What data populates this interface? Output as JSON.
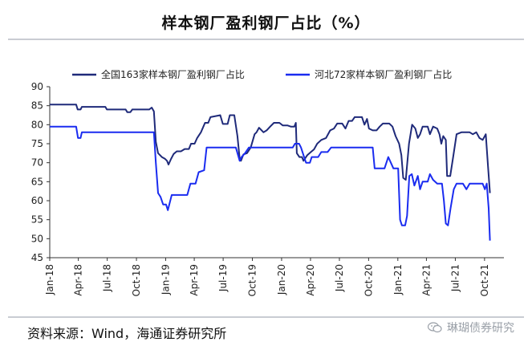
{
  "title": "样本钢厂盈利钢厂占比（%）",
  "source": "资料来源：Wind，海通证券研究所",
  "watermark": {
    "text": "琳瑚债券研究",
    "icon": "wechat-icon"
  },
  "chart_data": {
    "type": "line",
    "title": "样本钢厂盈利钢厂占比（%）",
    "xlabel": "",
    "ylabel": "",
    "ylim": [
      45,
      90
    ],
    "yticks": [
      45,
      50,
      55,
      60,
      65,
      70,
      75,
      80,
      85,
      90
    ],
    "xlim": [
      "2018-01-01",
      "2021-12-01"
    ],
    "xticks": [
      "Jan-18",
      "Apr-18",
      "Jul-18",
      "Oct-18",
      "Jan-19",
      "Apr-19",
      "Jul-19",
      "Oct-19",
      "Jan-20",
      "Apr-20",
      "Jul-20",
      "Oct-20",
      "Jan-21",
      "Apr-21",
      "Jul-21",
      "Oct-21"
    ],
    "xtick_dates": [
      "2018-01-01",
      "2018-04-01",
      "2018-07-01",
      "2018-10-01",
      "2019-01-01",
      "2019-04-01",
      "2019-07-01",
      "2019-10-01",
      "2020-01-01",
      "2020-04-01",
      "2020-07-01",
      "2020-10-01",
      "2021-01-01",
      "2021-04-01",
      "2021-07-01",
      "2021-10-01"
    ],
    "grid": false,
    "legend": "top",
    "series": [
      {
        "name": "全国163家样本钢厂盈利钢厂占比",
        "color": "#1f2a7a",
        "points": [
          [
            "2018-01-01",
            85.3
          ],
          [
            "2018-03-25",
            85.3
          ],
          [
            "2018-03-30",
            84.0
          ],
          [
            "2018-04-08",
            84.0
          ],
          [
            "2018-04-12",
            84.7
          ],
          [
            "2018-06-25",
            84.7
          ],
          [
            "2018-06-30",
            84.0
          ],
          [
            "2018-08-28",
            84.0
          ],
          [
            "2018-09-02",
            83.3
          ],
          [
            "2018-09-12",
            83.3
          ],
          [
            "2018-09-18",
            84.0
          ],
          [
            "2018-11-10",
            84.0
          ],
          [
            "2018-11-18",
            84.5
          ],
          [
            "2018-11-25",
            83.5
          ],
          [
            "2018-12-01",
            75.5
          ],
          [
            "2018-12-08",
            72.5
          ],
          [
            "2018-12-20",
            71.5
          ],
          [
            "2018-12-30",
            71.0
          ],
          [
            "2019-01-05",
            70.5
          ],
          [
            "2019-01-10",
            69.5
          ],
          [
            "2019-01-18",
            71.0
          ],
          [
            "2019-01-26",
            72.3
          ],
          [
            "2019-02-05",
            73.0
          ],
          [
            "2019-02-18",
            73.0
          ],
          [
            "2019-03-02",
            73.6
          ],
          [
            "2019-03-15",
            73.6
          ],
          [
            "2019-03-22",
            75.0
          ],
          [
            "2019-04-02",
            75.0
          ],
          [
            "2019-04-10",
            76.5
          ],
          [
            "2019-04-22",
            78.0
          ],
          [
            "2019-05-05",
            80.5
          ],
          [
            "2019-05-15",
            80.5
          ],
          [
            "2019-05-22",
            82.0
          ],
          [
            "2019-06-22",
            82.5
          ],
          [
            "2019-06-30",
            80.2
          ],
          [
            "2019-07-15",
            80.2
          ],
          [
            "2019-07-22",
            82.5
          ],
          [
            "2019-08-05",
            82.5
          ],
          [
            "2019-08-15",
            77.0
          ],
          [
            "2019-08-22",
            71.0
          ],
          [
            "2019-08-26",
            70.5
          ],
          [
            "2019-09-03",
            72.2
          ],
          [
            "2019-09-14",
            72.5
          ],
          [
            "2019-09-26",
            74.0
          ],
          [
            "2019-10-08",
            77.5
          ],
          [
            "2019-10-14",
            78.0
          ],
          [
            "2019-10-22",
            79.2
          ],
          [
            "2019-11-05",
            78.0
          ],
          [
            "2019-11-15",
            78.5
          ],
          [
            "2019-11-26",
            79.5
          ],
          [
            "2019-12-08",
            80.5
          ],
          [
            "2019-12-25",
            80.5
          ],
          [
            "2020-01-05",
            79.8
          ],
          [
            "2020-01-20",
            79.8
          ],
          [
            "2020-01-30",
            79.5
          ],
          [
            "2020-02-10",
            79.5
          ],
          [
            "2020-02-15",
            80.5
          ],
          [
            "2020-02-18",
            72.5
          ],
          [
            "2020-02-26",
            71.5
          ],
          [
            "2020-03-05",
            71.5
          ],
          [
            "2020-03-10",
            70.5
          ],
          [
            "2020-03-22",
            72.0
          ],
          [
            "2020-04-02",
            72.8
          ],
          [
            "2020-04-12",
            73.5
          ],
          [
            "2020-04-22",
            75.0
          ],
          [
            "2020-05-05",
            76.0
          ],
          [
            "2020-05-20",
            76.5
          ],
          [
            "2020-06-02",
            78.5
          ],
          [
            "2020-06-14",
            79.0
          ],
          [
            "2020-06-24",
            80.3
          ],
          [
            "2020-07-10",
            80.3
          ],
          [
            "2020-07-20",
            79.0
          ],
          [
            "2020-07-30",
            81.0
          ],
          [
            "2020-08-10",
            81.0
          ],
          [
            "2020-08-18",
            82.0
          ],
          [
            "2020-09-10",
            82.0
          ],
          [
            "2020-09-18",
            80.0
          ],
          [
            "2020-09-26",
            81.5
          ],
          [
            "2020-10-02",
            79.0
          ],
          [
            "2020-10-14",
            78.5
          ],
          [
            "2020-10-26",
            78.5
          ],
          [
            "2020-11-05",
            79.5
          ],
          [
            "2020-11-15",
            80.3
          ],
          [
            "2020-12-05",
            80.3
          ],
          [
            "2020-12-15",
            79.5
          ],
          [
            "2020-12-25",
            77.0
          ],
          [
            "2021-01-05",
            75.0
          ],
          [
            "2021-01-12",
            72.0
          ],
          [
            "2021-01-18",
            66.0
          ],
          [
            "2021-01-26",
            65.5
          ],
          [
            "2021-02-05",
            75.0
          ],
          [
            "2021-02-15",
            80.0
          ],
          [
            "2021-02-25",
            79.0
          ],
          [
            "2021-03-05",
            76.5
          ],
          [
            "2021-03-12",
            77.5
          ],
          [
            "2021-03-20",
            79.5
          ],
          [
            "2021-04-05",
            79.5
          ],
          [
            "2021-04-12",
            77.5
          ],
          [
            "2021-04-22",
            79.5
          ],
          [
            "2021-05-05",
            79.0
          ],
          [
            "2021-05-12",
            77.5
          ],
          [
            "2021-05-18",
            75.0
          ],
          [
            "2021-05-24",
            77.0
          ],
          [
            "2021-06-01",
            76.0
          ],
          [
            "2021-06-05",
            66.5
          ],
          [
            "2021-06-15",
            66.5
          ],
          [
            "2021-06-25",
            72.0
          ],
          [
            "2021-07-05",
            77.5
          ],
          [
            "2021-07-20",
            78.0
          ],
          [
            "2021-08-15",
            78.0
          ],
          [
            "2021-08-25",
            77.5
          ],
          [
            "2021-09-05",
            78.0
          ],
          [
            "2021-09-15",
            76.5
          ],
          [
            "2021-09-25",
            76.0
          ],
          [
            "2021-10-05",
            77.5
          ],
          [
            "2021-10-12",
            69.0
          ],
          [
            "2021-10-18",
            62.0
          ]
        ]
      },
      {
        "name": "河北72家样本钢厂盈利钢厂占比",
        "color": "#1a2cf0",
        "points": [
          [
            "2018-01-01",
            79.5
          ],
          [
            "2018-03-25",
            79.5
          ],
          [
            "2018-03-31",
            76.5
          ],
          [
            "2018-04-08",
            76.5
          ],
          [
            "2018-04-12",
            78.0
          ],
          [
            "2018-11-25",
            78.0
          ],
          [
            "2018-12-01",
            70.0
          ],
          [
            "2018-12-08",
            62.0
          ],
          [
            "2018-12-16",
            61.0
          ],
          [
            "2018-12-24",
            59.0
          ],
          [
            "2019-01-02",
            59.0
          ],
          [
            "2019-01-08",
            57.5
          ],
          [
            "2019-01-20",
            61.5
          ],
          [
            "2019-03-10",
            61.5
          ],
          [
            "2019-03-20",
            64.5
          ],
          [
            "2019-04-05",
            64.5
          ],
          [
            "2019-04-15",
            67.5
          ],
          [
            "2019-05-02",
            68.0
          ],
          [
            "2019-05-10",
            74.0
          ],
          [
            "2019-08-10",
            74.0
          ],
          [
            "2019-08-22",
            70.5
          ],
          [
            "2019-08-28",
            71.5
          ],
          [
            "2019-09-08",
            72.5
          ],
          [
            "2019-09-20",
            74.0
          ],
          [
            "2020-02-05",
            74.0
          ],
          [
            "2020-02-12",
            75.0
          ],
          [
            "2020-02-25",
            75.0
          ],
          [
            "2020-03-02",
            74.0
          ],
          [
            "2020-03-10",
            72.0
          ],
          [
            "2020-03-18",
            70.0
          ],
          [
            "2020-03-30",
            70.0
          ],
          [
            "2020-04-05",
            71.5
          ],
          [
            "2020-04-25",
            71.5
          ],
          [
            "2020-05-05",
            72.8
          ],
          [
            "2020-05-25",
            72.8
          ],
          [
            "2020-06-05",
            74.0
          ],
          [
            "2020-10-14",
            74.0
          ],
          [
            "2020-10-20",
            68.5
          ],
          [
            "2020-11-20",
            68.5
          ],
          [
            "2020-12-02",
            71.5
          ],
          [
            "2020-12-10",
            70.0
          ],
          [
            "2020-12-18",
            68.5
          ],
          [
            "2021-01-02",
            68.5
          ],
          [
            "2021-01-08",
            55.0
          ],
          [
            "2021-01-14",
            53.5
          ],
          [
            "2021-01-24",
            53.5
          ],
          [
            "2021-01-30",
            56.0
          ],
          [
            "2021-02-06",
            66.5
          ],
          [
            "2021-02-14",
            67.0
          ],
          [
            "2021-02-22",
            64.0
          ],
          [
            "2021-03-05",
            66.5
          ],
          [
            "2021-03-12",
            63.0
          ],
          [
            "2021-03-20",
            65.0
          ],
          [
            "2021-04-05",
            65.0
          ],
          [
            "2021-04-12",
            67.0
          ],
          [
            "2021-04-22",
            65.5
          ],
          [
            "2021-05-05",
            64.5
          ],
          [
            "2021-05-20",
            64.5
          ],
          [
            "2021-05-26",
            60.0
          ],
          [
            "2021-06-01",
            54.0
          ],
          [
            "2021-06-08",
            53.5
          ],
          [
            "2021-06-16",
            58.0
          ],
          [
            "2021-06-26",
            63.0
          ],
          [
            "2021-07-05",
            64.5
          ],
          [
            "2021-07-25",
            64.5
          ],
          [
            "2021-08-05",
            63.0
          ],
          [
            "2021-08-15",
            64.5
          ],
          [
            "2021-09-25",
            64.5
          ],
          [
            "2021-10-02",
            63.0
          ],
          [
            "2021-10-08",
            64.5
          ],
          [
            "2021-10-14",
            58.0
          ],
          [
            "2021-10-18",
            49.5
          ]
        ]
      }
    ]
  }
}
